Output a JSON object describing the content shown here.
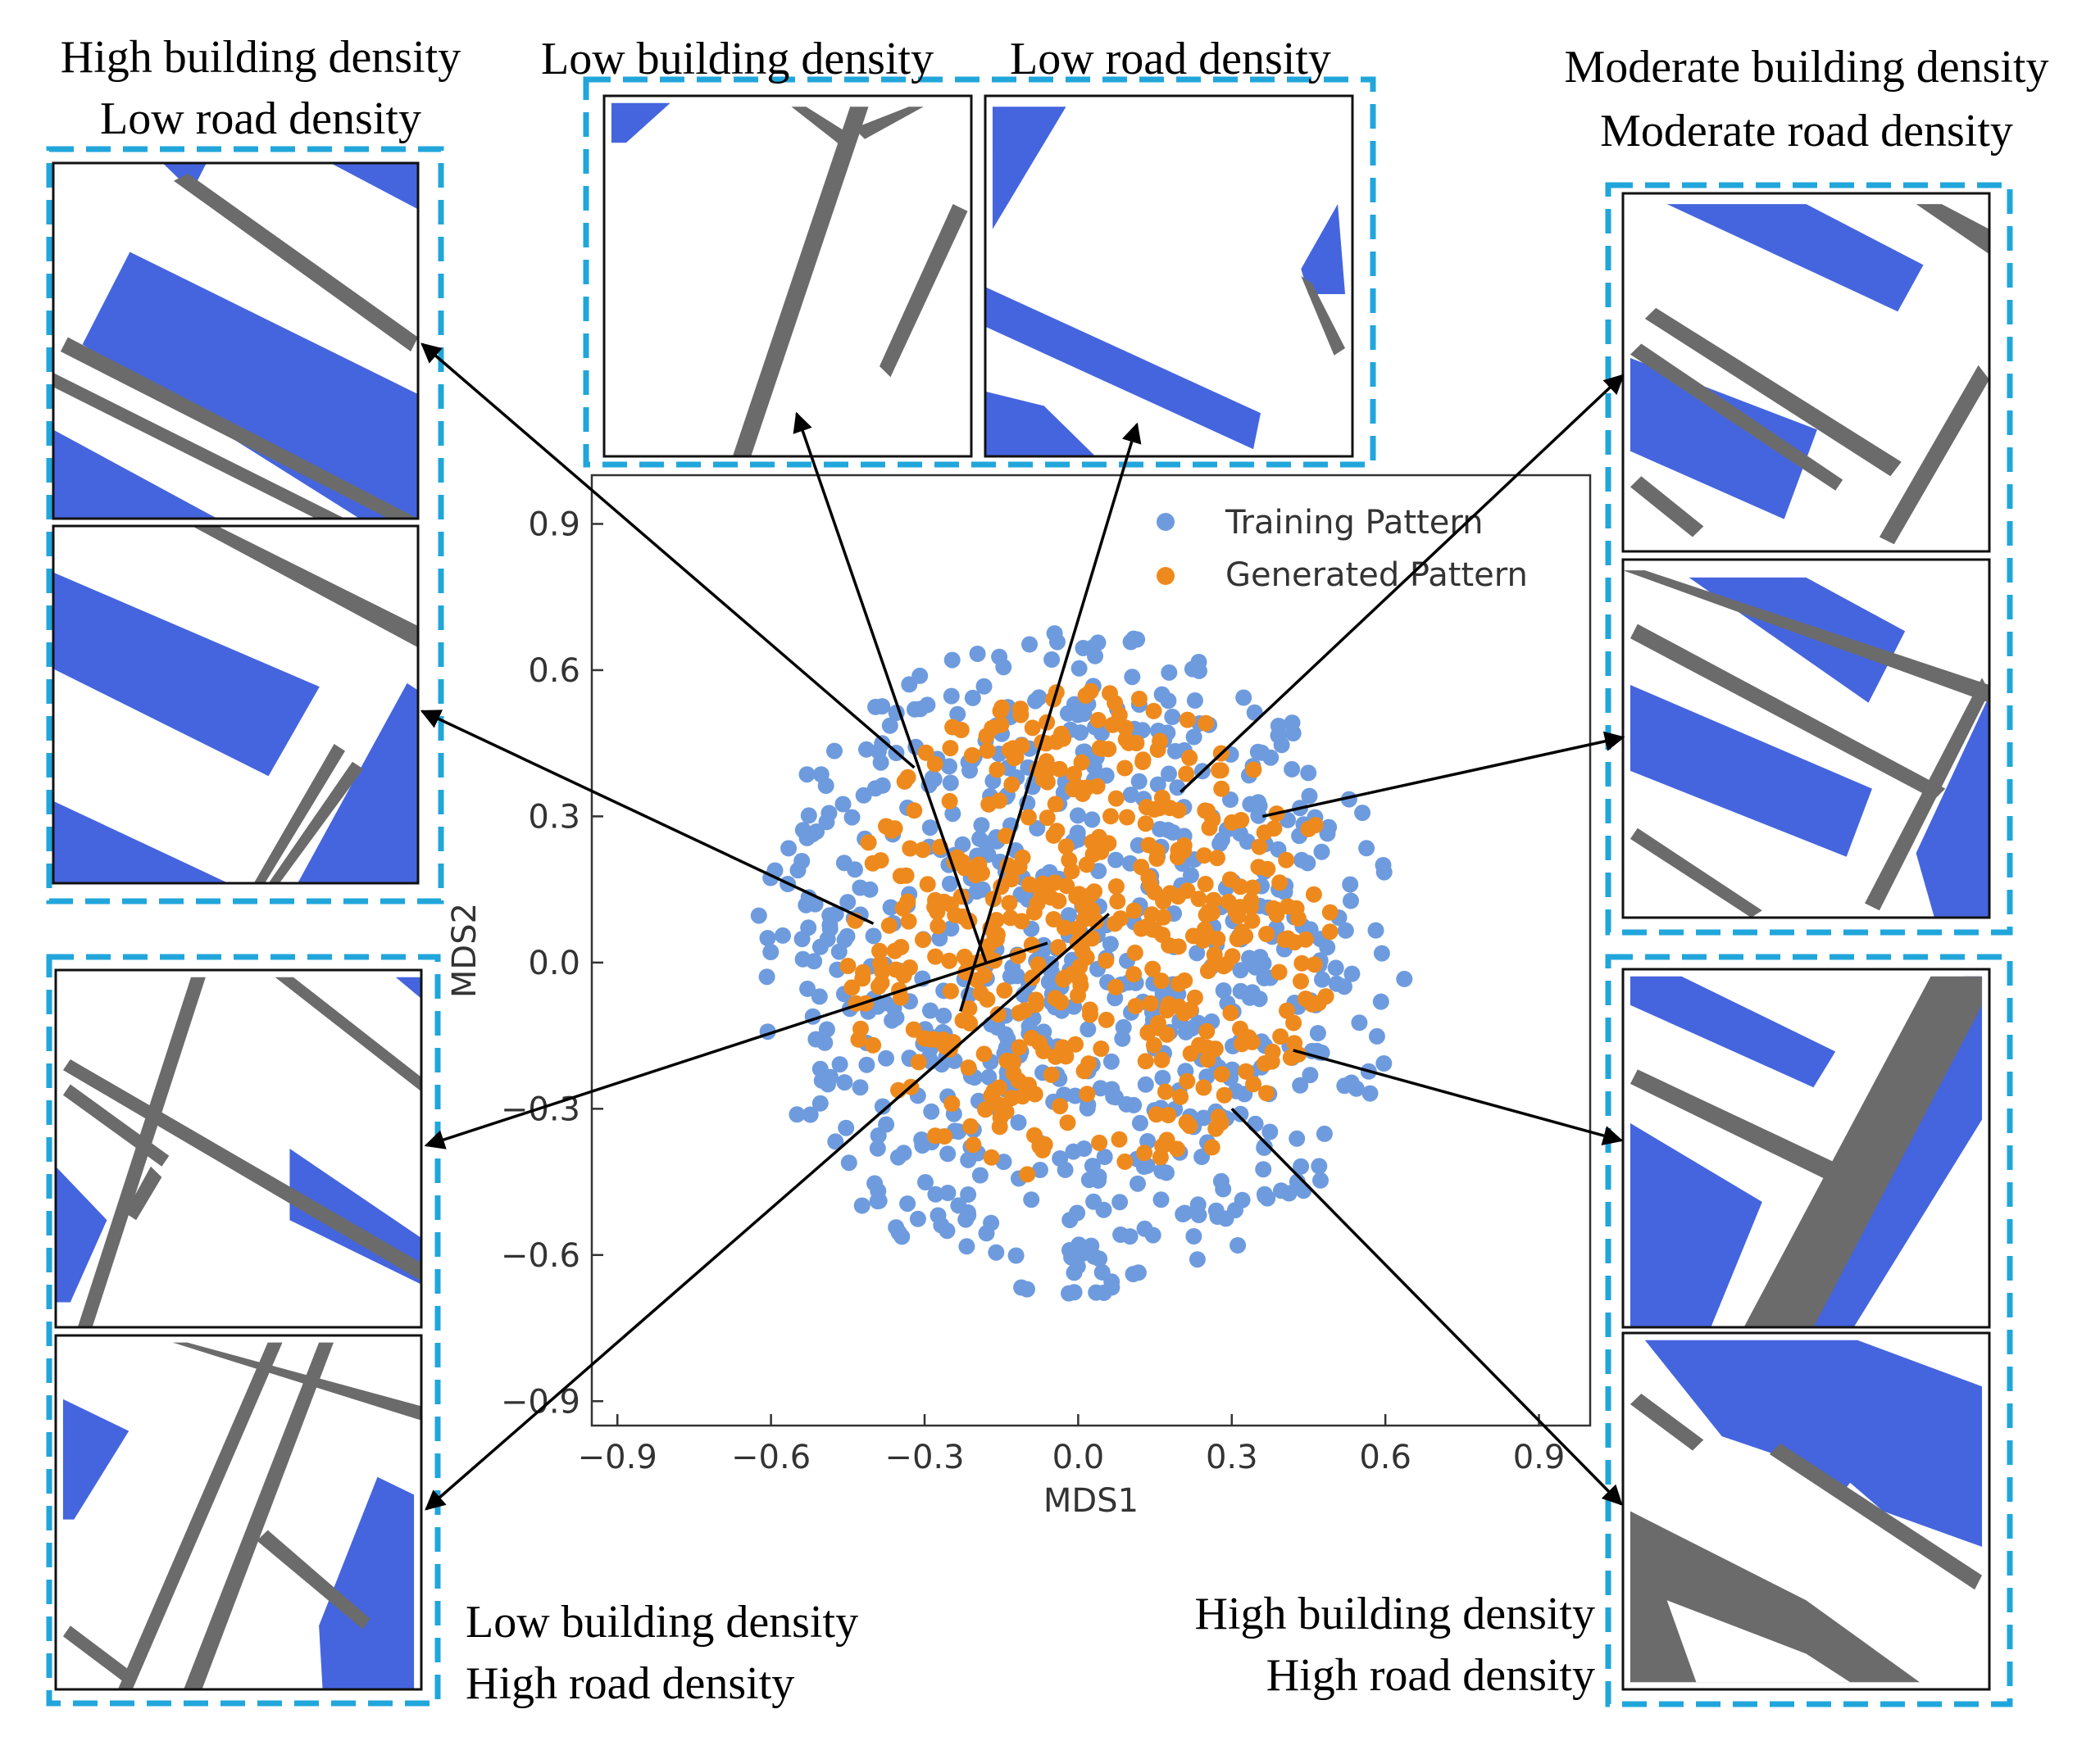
{
  "colors": {
    "building": "#4565DE",
    "road": "#6B6B6B",
    "training": "#6E9BDD",
    "generated": "#EE8A1D",
    "frame": "#21A6DB"
  },
  "groups": [
    {
      "id": "hbld",
      "lines": [
        "High building density",
        "Low road density"
      ]
    },
    {
      "id": "lbld",
      "lines": [
        "Low building density",
        "Low road density"
      ]
    },
    {
      "id": "mbld",
      "lines": [
        "Moderate building density",
        "Moderate road density"
      ]
    },
    {
      "id": "lbhr",
      "lines": [
        "Low building density",
        "High road density"
      ]
    },
    {
      "id": "hbhr",
      "lines": [
        "High building density",
        "High road density"
      ]
    }
  ],
  "chart_data": {
    "type": "scatter",
    "xlabel": "MDS1",
    "ylabel": "MDS2",
    "xlim": [
      -0.95,
      1.0
    ],
    "ylim": [
      -0.95,
      1.0
    ],
    "xticks": [
      -0.9,
      -0.6,
      -0.3,
      0.0,
      0.3,
      0.6,
      0.9
    ],
    "yticks": [
      -0.9,
      -0.6,
      -0.3,
      0.0,
      0.3,
      0.6,
      0.9
    ],
    "xtick_labels": [
      "−0.9",
      "−0.6",
      "−0.3",
      "0.0",
      "0.3",
      "0.6",
      "0.9"
    ],
    "ytick_labels": [
      "−0.9",
      "−0.6",
      "−0.3",
      "0.0",
      "0.3",
      "0.6",
      "0.9"
    ],
    "legend": {
      "position": "top-right",
      "entries": [
        "Training Pattern",
        "Generated Pattern"
      ]
    },
    "series": [
      {
        "name": "Training Pattern",
        "n": 700,
        "center": [
          0.0,
          0.0
        ],
        "radius": 0.63,
        "color": "#6E9BDD"
      },
      {
        "name": "Generated Pattern",
        "n": 470,
        "center": [
          0.02,
          0.05
        ],
        "radius": 0.48,
        "color": "#EE8A1D"
      }
    ],
    "annotation_points": [
      [
        -0.32,
        0.4
      ],
      [
        -0.4,
        0.08
      ],
      [
        -0.18,
        0.0
      ],
      [
        -0.23,
        -0.1
      ],
      [
        -0.06,
        0.04
      ],
      [
        0.06,
        0.1
      ],
      [
        0.2,
        0.35
      ],
      [
        0.36,
        0.3
      ],
      [
        0.42,
        -0.18
      ],
      [
        0.3,
        -0.3
      ]
    ]
  }
}
